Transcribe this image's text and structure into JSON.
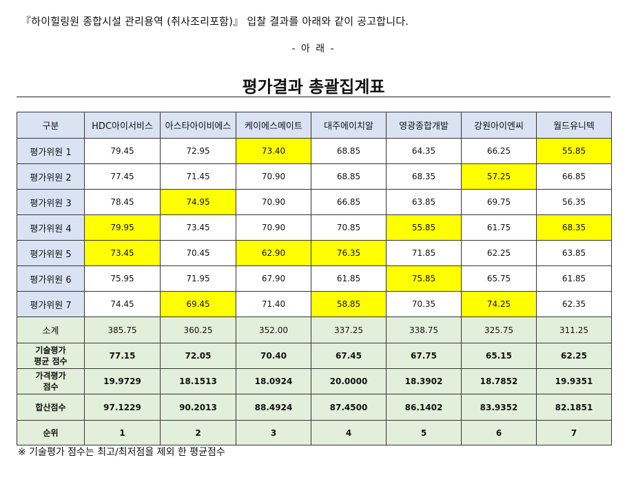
{
  "intro": "『하이힐링원 종합시설 관리용역 (취사조리포함)』 입찰 결과를 아래와 같이 공고합니다.",
  "subhead": "- 아   래 -",
  "title": "평가결과 총괄집계표",
  "table": {
    "corner": "구분",
    "companies": [
      "HDC아이서비스",
      "아스타아이비에스",
      "케이에스메이트",
      "대주에이치알",
      "영광종합개발",
      "강원아이엔씨",
      "월드유니텍"
    ],
    "evaluators": [
      {
        "label": "평가위원 1",
        "scores": [
          "79.45",
          "72.95",
          "73.40",
          "68.85",
          "64.35",
          "66.25",
          "55.85"
        ],
        "highlight": [
          2,
          6
        ]
      },
      {
        "label": "평가위원 2",
        "scores": [
          "77.45",
          "71.45",
          "70.90",
          "68.85",
          "68.35",
          "57.25",
          "66.85"
        ],
        "highlight": [
          5
        ]
      },
      {
        "label": "평가위원 3",
        "scores": [
          "78.45",
          "74.95",
          "70.90",
          "66.85",
          "63.85",
          "69.75",
          "56.35"
        ],
        "highlight": [
          1
        ]
      },
      {
        "label": "평가위원 4",
        "scores": [
          "79.95",
          "73.45",
          "70.90",
          "70.85",
          "55.85",
          "61.75",
          "68.35"
        ],
        "highlight": [
          0,
          4,
          6
        ]
      },
      {
        "label": "평가위원 5",
        "scores": [
          "73.45",
          "70.45",
          "62.90",
          "76.35",
          "71.85",
          "62.25",
          "63.85"
        ],
        "highlight": [
          0,
          2,
          3
        ]
      },
      {
        "label": "평가위원 6",
        "scores": [
          "75.95",
          "71.95",
          "67.90",
          "61.85",
          "75.85",
          "65.75",
          "61.85"
        ],
        "highlight": [
          4
        ]
      },
      {
        "label": "평가위원 7",
        "scores": [
          "74.45",
          "69.45",
          "71.40",
          "58.85",
          "70.35",
          "74.25",
          "62.35"
        ],
        "highlight": [
          1,
          3,
          5
        ]
      }
    ],
    "subtotal": {
      "label": "소계",
      "values": [
        "385.75",
        "360.25",
        "352.00",
        "337.25",
        "338.75",
        "325.75",
        "311.25"
      ]
    },
    "tech_avg": {
      "label_line1": "기술평가",
      "label_line2": "평균 점수",
      "values": [
        "77.15",
        "72.05",
        "70.40",
        "67.45",
        "67.75",
        "65.15",
        "62.25"
      ]
    },
    "price": {
      "label_line1": "가격평가",
      "label_line2": "점수",
      "values": [
        "19.9729",
        "18.1513",
        "18.0924",
        "20.0000",
        "18.3902",
        "18.7852",
        "19.9351"
      ]
    },
    "total": {
      "label": "합산점수",
      "values": [
        "97.1229",
        "90.2013",
        "88.4924",
        "87.4500",
        "86.1402",
        "83.9352",
        "82.1851"
      ]
    },
    "rank": {
      "label": "순위",
      "values": [
        "1",
        "2",
        "3",
        "4",
        "5",
        "6",
        "7"
      ]
    },
    "highlight_color": "#ffff00",
    "header_color": "#dae3f3",
    "summary_color": "#e2efda"
  },
  "footnote": "※ 기술평가 점수는 최고/최저점을 제외 한 평균점수"
}
